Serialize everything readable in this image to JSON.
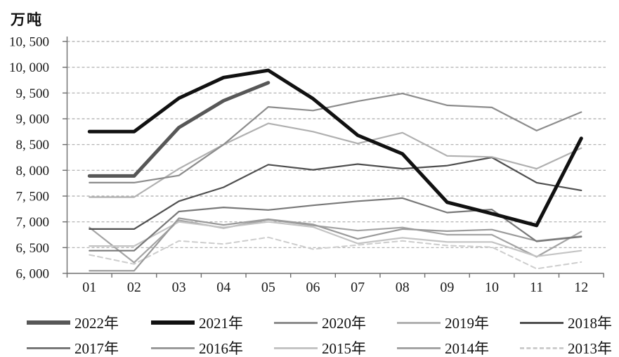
{
  "unit_label": "万吨",
  "axes": {
    "ytick_labels": [
      "10, 500",
      "10, 000",
      "9, 500",
      "9, 000",
      "8, 500",
      "8, 000",
      "7, 500",
      "7, 000",
      "6, 500",
      "6, 000"
    ],
    "xtick_labels": [
      "01",
      "02",
      "03",
      "04",
      "05",
      "06",
      "07",
      "08",
      "09",
      "10",
      "11",
      "12"
    ],
    "axis_color": "#6e6e6e",
    "gridline_color": "#ababab",
    "text_color": "#1a1a1a"
  },
  "chart_data": {
    "type": "line",
    "title": "",
    "ylabel": "万吨",
    "xlabel": "",
    "ylim": [
      6000,
      10500
    ],
    "ytick_step": 500,
    "grid": "horizontal dashed",
    "legend_position": "bottom, two rows",
    "x": [
      "01",
      "02",
      "03",
      "04",
      "05",
      "06",
      "07",
      "08",
      "09",
      "10",
      "11",
      "12"
    ],
    "series": [
      {
        "name": "2022年",
        "color": "#575757",
        "width": 5,
        "dash": null,
        "values": [
          7890,
          7890,
          8830,
          9350,
          9700,
          null,
          null,
          null,
          null,
          null,
          null,
          null
        ]
      },
      {
        "name": "2021年",
        "color": "#111111",
        "width": 5,
        "dash": null,
        "values": [
          8750,
          8750,
          9400,
          9800,
          9940,
          9390,
          8680,
          8320,
          7380,
          7160,
          6930,
          8620
        ]
      },
      {
        "name": "2020年",
        "color": "#8c8c8c",
        "width": 2.2,
        "dash": null,
        "values": [
          7760,
          7760,
          7900,
          8500,
          9230,
          9160,
          9340,
          9490,
          9260,
          9220,
          8770,
          9130
        ]
      },
      {
        "name": "2019年",
        "color": "#b0b0b0",
        "width": 2.2,
        "dash": null,
        "values": [
          7480,
          7480,
          8030,
          8500,
          8910,
          8750,
          8520,
          8730,
          8280,
          8260,
          8030,
          8430
        ]
      },
      {
        "name": "2018年",
        "color": "#4f4f4f",
        "width": 2.2,
        "dash": null,
        "values": [
          6860,
          6860,
          7400,
          7670,
          8110,
          8010,
          8120,
          8030,
          8090,
          8250,
          7760,
          7610
        ]
      },
      {
        "name": "2017年",
        "color": "#787878",
        "width": 2.2,
        "dash": null,
        "values": [
          6440,
          6440,
          7200,
          7280,
          7230,
          7320,
          7400,
          7460,
          7180,
          7240,
          6620,
          6710
        ]
      },
      {
        "name": "2016年",
        "color": "#9a9a9a",
        "width": 2.2,
        "dash": null,
        "values": [
          6050,
          6050,
          7070,
          6940,
          7050,
          6950,
          6670,
          6860,
          6820,
          6850,
          6630,
          6720
        ]
      },
      {
        "name": "2015年",
        "color": "#c4c4c4",
        "width": 2.2,
        "dash": null,
        "values": [
          6530,
          6530,
          7000,
          6890,
          7000,
          6900,
          6580,
          6690,
          6610,
          6610,
          6330,
          6440
        ]
      },
      {
        "name": "2014年",
        "color": "#a4a4a4",
        "width": 2.2,
        "dash": null,
        "values": [
          6890,
          6210,
          7030,
          6880,
          7040,
          6930,
          6830,
          6890,
          6750,
          6750,
          6320,
          6810
        ]
      },
      {
        "name": "2013年",
        "color": "#cdcdcd",
        "width": 2,
        "dash": "7,5",
        "values": [
          6360,
          6180,
          6630,
          6570,
          6700,
          6470,
          6550,
          6630,
          6540,
          6510,
          6090,
          6220
        ]
      }
    ]
  },
  "legend": {
    "rows": [
      [
        "2022年",
        "2021年",
        "2020年",
        "2019年",
        "2018年"
      ],
      [
        "2017年",
        "2016年",
        "2015年",
        "2014年",
        "2013年"
      ]
    ]
  }
}
